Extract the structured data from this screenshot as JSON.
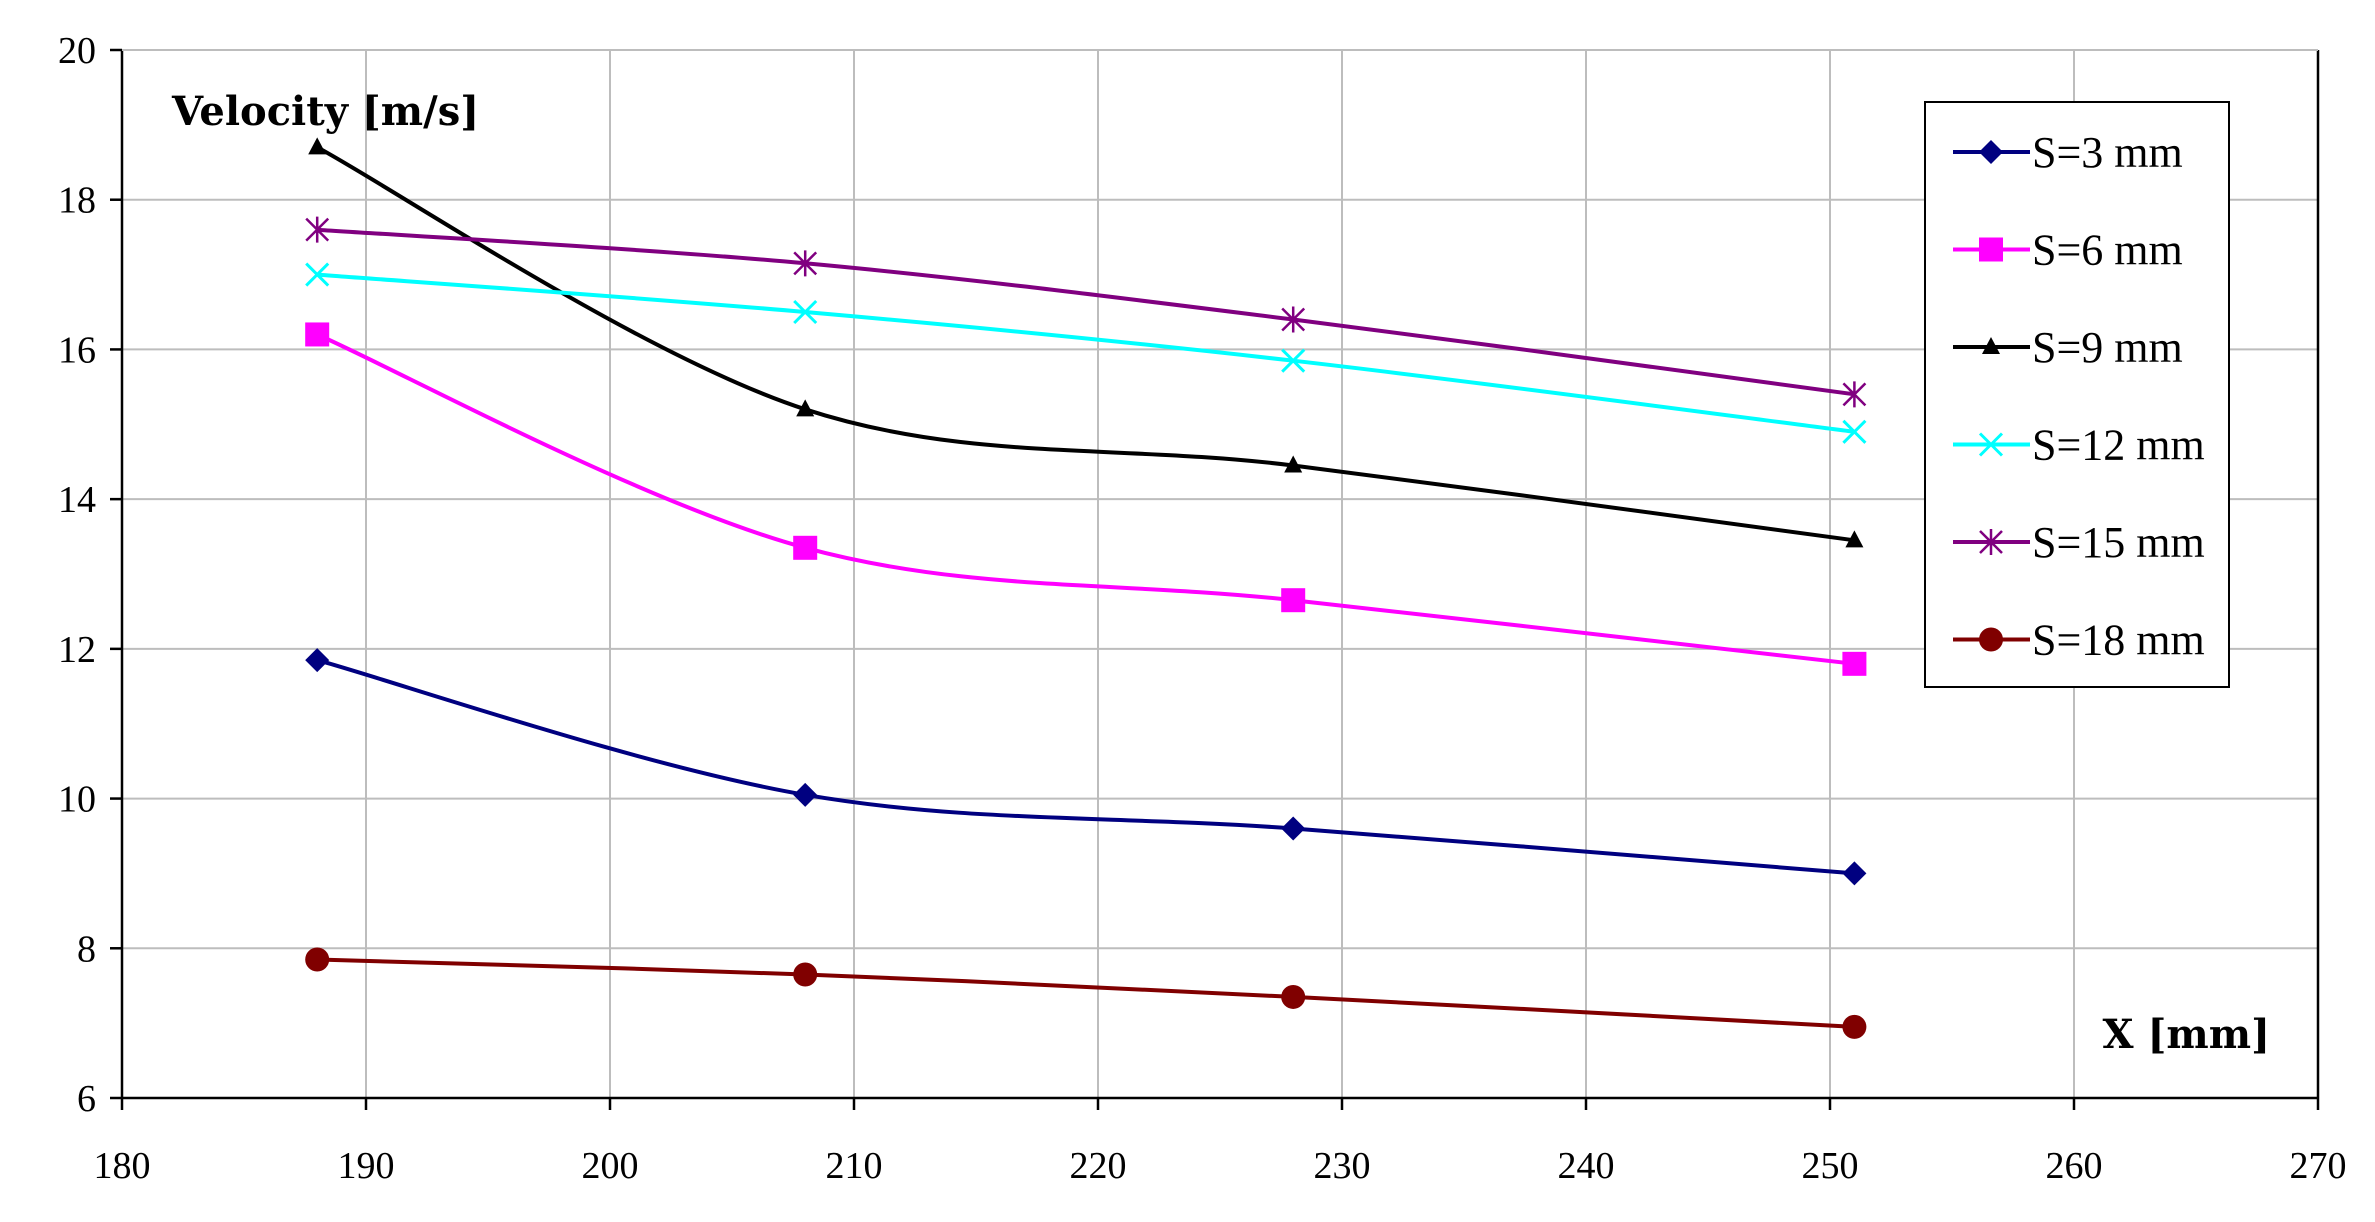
{
  "chart_data": {
    "type": "line",
    "title": "",
    "ylabel": "Velocity [m/s]",
    "xlabel": "X [mm]",
    "xlim": [
      180,
      270
    ],
    "ylim": [
      6,
      20
    ],
    "xticks": [
      180,
      190,
      200,
      210,
      220,
      230,
      240,
      250,
      260,
      270
    ],
    "yticks": [
      6,
      8,
      10,
      12,
      14,
      16,
      18,
      20
    ],
    "grid": true,
    "legend_position": "top-right",
    "x": [
      188,
      208,
      228,
      251
    ],
    "series": [
      {
        "name": "S=3 mm",
        "color": "#000080",
        "marker": "diamond",
        "values": [
          11.85,
          10.05,
          9.6,
          9.0
        ]
      },
      {
        "name": "S=6 mm",
        "color": "#ff00ff",
        "marker": "square",
        "values": [
          16.2,
          13.35,
          12.65,
          11.8
        ]
      },
      {
        "name": "S=9 mm",
        "color": "#000000",
        "marker": "triangle",
        "values": [
          18.7,
          15.2,
          14.45,
          13.45
        ]
      },
      {
        "name": "S=12 mm",
        "color": "#00ffff",
        "marker": "x",
        "values": [
          17.0,
          16.5,
          15.85,
          14.9
        ]
      },
      {
        "name": "S=15 mm",
        "color": "#800080",
        "marker": "star",
        "values": [
          17.6,
          17.15,
          16.4,
          15.4
        ]
      },
      {
        "name": "S=18 mm",
        "color": "#800000",
        "marker": "circle",
        "values": [
          7.85,
          7.65,
          7.35,
          6.95
        ]
      }
    ]
  }
}
